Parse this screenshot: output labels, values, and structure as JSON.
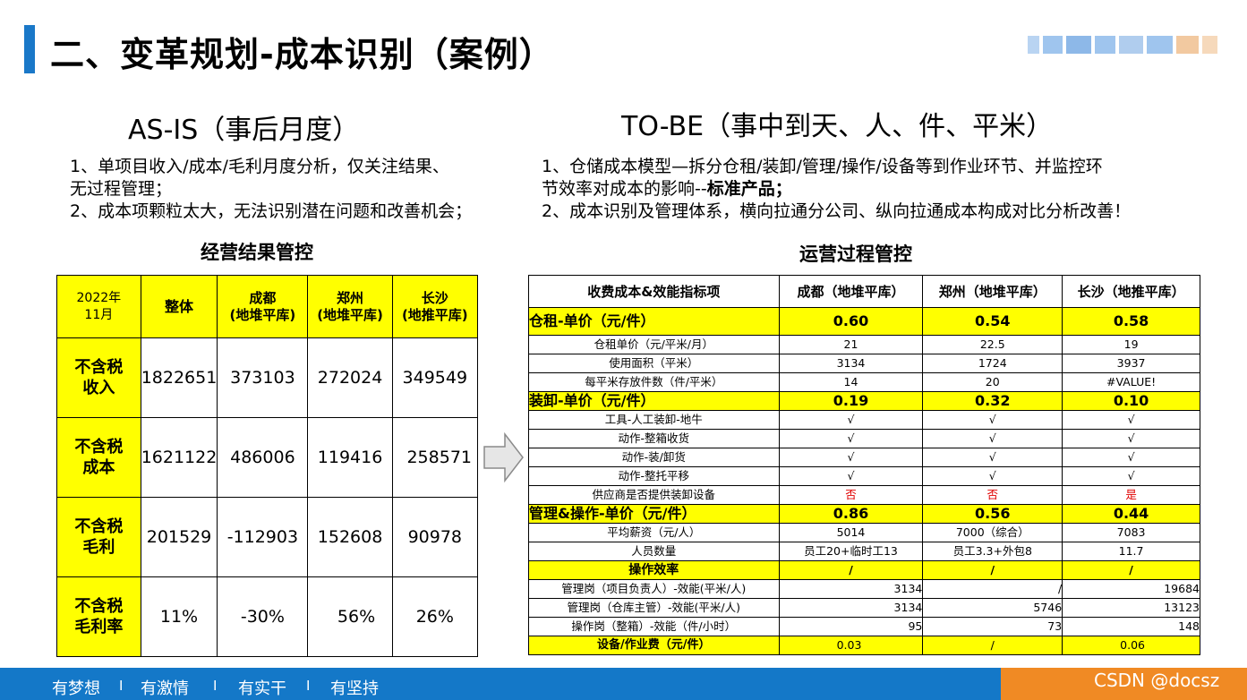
{
  "title": "二、变革规划-成本识别（案例）",
  "as_is": {
    "heading": "AS-IS（事后月度）",
    "line1": "1、单项目收入/成本/毛利月度分析，仅关注结果、",
    "line2": "无过程管理；",
    "line3": "2、成本项颗粒太大，无法识别潜在问题和改善机会；"
  },
  "to_be": {
    "heading": "TO-BE（事中到天、人、件、平米）",
    "line1": "1、仓储成本模型—拆分仓租/装卸/管理/操作/设备等到作业环节、并监控环",
    "line2a": "节效率对成本的影响--",
    "line2b": "标准产品；",
    "line3": "2、成本识别及管理体系，横向拉通分公司、纵向拉通成本构成对比分析改善！"
  },
  "left_section": "经营结果管控",
  "right_section": "运营过程管控",
  "left_table": {
    "h0a": "2022年",
    "h0b": "11月",
    "h1": "整体",
    "h2a": "成都",
    "h2b": "(地堆平库)",
    "h3a": "郑州",
    "h3b": "(地堆平库)",
    "h4a": "长沙",
    "h4b": "(地推平库)",
    "rows": [
      {
        "a": "不含税",
        "b": "收入",
        "v": [
          "1822651",
          "373103",
          "272024",
          "349549"
        ]
      },
      {
        "a": "不含税",
        "b": "成本",
        "v": [
          "1621122",
          "486006",
          "119416",
          "258571"
        ]
      },
      {
        "a": "不含税",
        "b": "毛利",
        "v": [
          "201529",
          "-112903",
          "152608",
          "90978"
        ]
      },
      {
        "a": "不含税",
        "b": "毛利率",
        "v": [
          "11%",
          "-30%",
          "56%",
          "26%"
        ]
      }
    ]
  },
  "right_table": {
    "header": [
      "收费成本&效能指标项",
      "成都（地堆平库）",
      "郑州（地堆平库）",
      "长沙（地推平库）"
    ],
    "r1": [
      "仓租-单价（元/件）",
      "0.60",
      "0.54",
      "0.58"
    ],
    "r2": [
      "仓租单价（元/平米/月）",
      "21",
      "22.5",
      "19"
    ],
    "r3": [
      "使用面积（平米）",
      "3134",
      "1724",
      "3937"
    ],
    "r4": [
      "每平米存放件数（件/平米）",
      "14",
      "20",
      "#VALUE!"
    ],
    "r5": [
      "装卸-单价（元/件）",
      "0.19",
      "0.32",
      "0.10"
    ],
    "r6": [
      "工具-人工装卸-地牛",
      "√",
      "√",
      "√"
    ],
    "r7": [
      "动作-整箱收货",
      "√",
      "√",
      "√"
    ],
    "r8": [
      "动作-装/卸货",
      "√",
      "√",
      "√"
    ],
    "r9": [
      "动作-整托平移",
      "√",
      "√",
      "√"
    ],
    "r10": [
      "供应商是否提供装卸设备",
      "否",
      "否",
      "是"
    ],
    "r11": [
      "管理&操作-单价（元/件）",
      "0.86",
      "0.56",
      "0.44"
    ],
    "r12": [
      "平均薪资（元/人）",
      "5014",
      "7000（综合）",
      "7083"
    ],
    "r13": [
      "人员数量",
      "员工20+临时工13",
      "员工3.3+外包8",
      "11.7"
    ],
    "r14": [
      "操作效率",
      "/",
      "/",
      "/"
    ],
    "r15": [
      "管理岗（项目负责人）-效能(平米/人)",
      "3134",
      "/",
      "19684"
    ],
    "r16": [
      "管理岗（仓库主管）-效能(平米/人)",
      "3134",
      "5746",
      "13123"
    ],
    "r17": [
      "操作岗（整箱）-效能（件/小时）",
      "95",
      "73",
      "148"
    ],
    "r18": [
      "设备/作业费（元/件）",
      "0.03",
      "/",
      "0.06"
    ]
  },
  "footer": {
    "s1": "有梦想",
    "s2": "有激情",
    "s3": "有实干",
    "s4": "有坚持",
    "sep": "I",
    "watermark": "CSDN @docsz"
  },
  "colors": {
    "accent": "#1a78c8",
    "highlight": "#ffff00",
    "footer": "#1478c8",
    "footer_right": "#f08a24",
    "negative": "#e00000"
  }
}
